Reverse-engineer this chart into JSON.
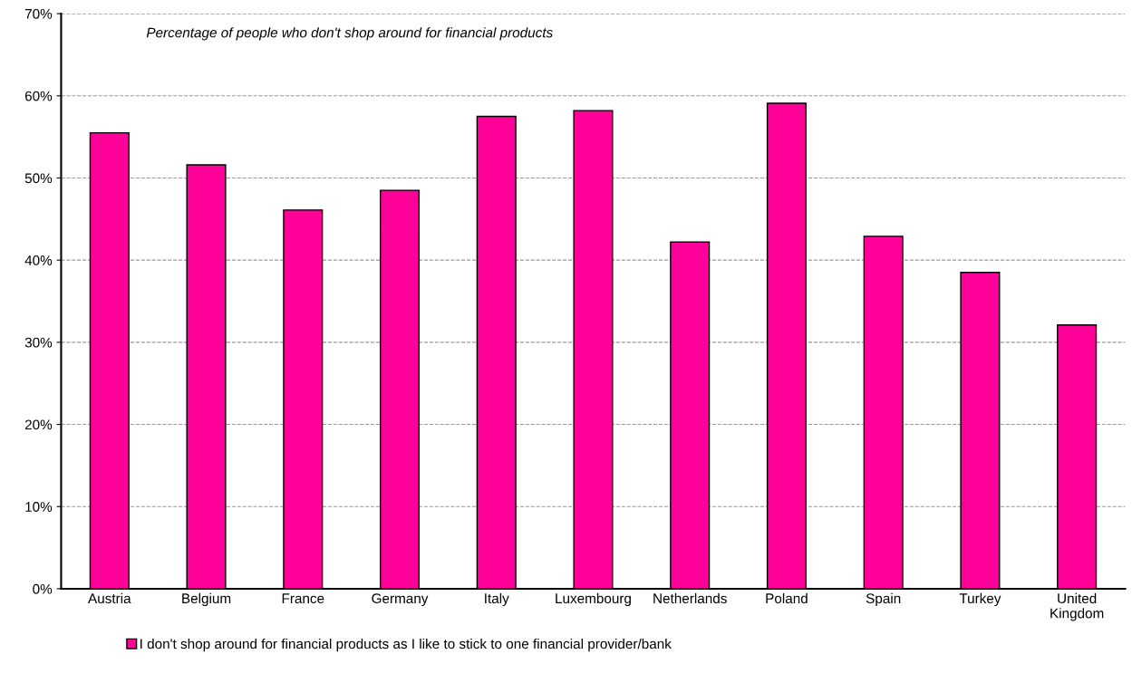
{
  "chart_data": {
    "type": "bar",
    "title": "Percentage of people who don't shop around for financial products",
    "categories": [
      "Austria",
      "Belgium",
      "France",
      "Germany",
      "Italy",
      "Luxembourg",
      "Netherlands",
      "Poland",
      "Spain",
      "Turkey",
      "United\nKingdom"
    ],
    "series": [
      {
        "name": "I don't shop around for financial products as I like to stick to one financial provider/bank",
        "color": "#ff0099",
        "values": [
          55.5,
          51.6,
          46.1,
          48.5,
          57.5,
          58.2,
          42.2,
          59.1,
          42.9,
          38.5,
          32.1
        ]
      }
    ],
    "ylim": [
      0,
      70
    ],
    "yticks": [
      {
        "value": 0,
        "label": "0%"
      },
      {
        "value": 10,
        "label": "10%"
      },
      {
        "value": 20,
        "label": "20%"
      },
      {
        "value": 30,
        "label": "30%"
      },
      {
        "value": 40,
        "label": "40%"
      },
      {
        "value": 50,
        "label": "50%"
      },
      {
        "value": 60,
        "label": "60%"
      },
      {
        "value": 70,
        "label": "70%"
      }
    ],
    "grid": "y",
    "legend": "bottom left"
  }
}
